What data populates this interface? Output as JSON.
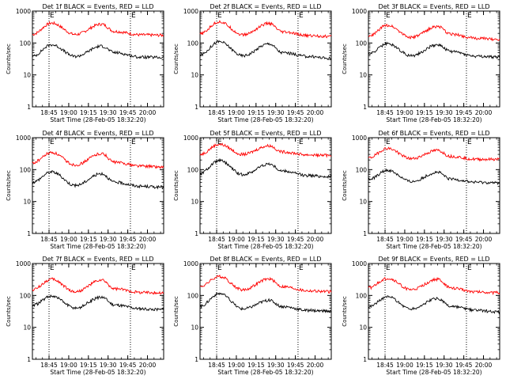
{
  "chart_data": [
    {
      "type": "line",
      "title": "Det 1f BLACK = Events, RED = LLD",
      "xlabel": "Start Time (28-Feb-05 18:32:20)",
      "ylabel": "Counts/sec",
      "yscale": "log",
      "ylim": [
        1,
        1000
      ],
      "xlim_minutes_after_start": [
        0,
        100
      ],
      "ytick_labels": [
        "1",
        "10",
        "100",
        "1000"
      ],
      "xtick_labels": [
        "18:45",
        "19:00",
        "19:15",
        "19:30",
        "19:45",
        "20:00"
      ],
      "markers": [
        {
          "label": "E",
          "x_label": "18:45"
        },
        {
          "label": "E",
          "x_label": "19:47"
        }
      ],
      "series": [
        {
          "color": "#ff0000",
          "x_times": [
            "18:32",
            "18:47",
            "19:05",
            "19:25",
            "19:35",
            "19:55",
            "20:12"
          ],
          "y": [
            185,
            420,
            185,
            390,
            230,
            180,
            175
          ]
        },
        {
          "color": "#000000",
          "x_times": [
            "18:32",
            "18:47",
            "19:05",
            "19:25",
            "19:35",
            "19:55",
            "20:12"
          ],
          "y": [
            38,
            88,
            38,
            80,
            50,
            36,
            35
          ]
        }
      ]
    },
    {
      "type": "line",
      "title": "Det 2f BLACK = Events, RED = LLD",
      "xlabel": "Start Time (28-Feb-05 18:32:20)",
      "ylabel": "Counts/sec",
      "yscale": "log",
      "ylim": [
        1,
        1000
      ],
      "xlim_minutes_after_start": [
        0,
        100
      ],
      "ytick_labels": [
        "1",
        "10",
        "100",
        "1000"
      ],
      "xtick_labels": [
        "18:45",
        "19:00",
        "19:15",
        "19:30",
        "19:45",
        "20:00"
      ],
      "markers": [
        {
          "label": "E",
          "x_label": "18:45"
        },
        {
          "label": "E",
          "x_label": "19:47"
        }
      ],
      "series": [
        {
          "color": "#ff0000",
          "x_times": [
            "18:32",
            "18:47",
            "19:05",
            "19:25",
            "19:35",
            "19:55",
            "20:12"
          ],
          "y": [
            190,
            460,
            180,
            410,
            220,
            170,
            160
          ]
        },
        {
          "color": "#000000",
          "x_times": [
            "18:32",
            "18:47",
            "19:05",
            "19:25",
            "19:35",
            "19:55",
            "20:12"
          ],
          "y": [
            42,
            110,
            40,
            95,
            50,
            38,
            33
          ]
        }
      ]
    },
    {
      "type": "line",
      "title": "Det 3f BLACK = Events, RED = LLD",
      "xlabel": "Start Time (28-Feb-05 18:32:20)",
      "ylabel": "Counts/sec",
      "yscale": "log",
      "ylim": [
        1,
        1000
      ],
      "xlim_minutes_after_start": [
        0,
        100
      ],
      "ytick_labels": [
        "1",
        "10",
        "100",
        "1000"
      ],
      "xtick_labels": [
        "18:45",
        "19:00",
        "19:15",
        "19:30",
        "19:45",
        "20:00"
      ],
      "markers": [
        {
          "label": "E",
          "x_label": "18:45"
        },
        {
          "label": "E",
          "x_label": "19:47"
        }
      ],
      "series": [
        {
          "color": "#ff0000",
          "x_times": [
            "18:32",
            "18:47",
            "19:05",
            "19:25",
            "19:35",
            "19:55",
            "20:12"
          ],
          "y": [
            160,
            360,
            150,
            330,
            190,
            140,
            130
          ]
        },
        {
          "color": "#000000",
          "x_times": [
            "18:32",
            "18:47",
            "19:05",
            "19:25",
            "19:35",
            "19:55",
            "20:12"
          ],
          "y": [
            45,
            95,
            40,
            88,
            55,
            38,
            36
          ]
        }
      ]
    },
    {
      "type": "line",
      "title": "Det 4f BLACK = Events, RED = LLD",
      "xlabel": "Start Time (28-Feb-05 18:32:20)",
      "ylabel": "Counts/sec",
      "yscale": "log",
      "ylim": [
        1,
        1000
      ],
      "xlim_minutes_after_start": [
        0,
        100
      ],
      "ytick_labels": [
        "1",
        "10",
        "100",
        "1000"
      ],
      "xtick_labels": [
        "18:45",
        "19:00",
        "19:15",
        "19:30",
        "19:45",
        "20:00"
      ],
      "markers": [
        {
          "label": "E",
          "x_label": "18:45"
        },
        {
          "label": "E",
          "x_label": "19:47"
        }
      ],
      "series": [
        {
          "color": "#ff0000",
          "x_times": [
            "18:32",
            "18:47",
            "19:05",
            "19:25",
            "19:35",
            "19:55",
            "20:12"
          ],
          "y": [
            160,
            340,
            140,
            320,
            170,
            130,
            120
          ]
        },
        {
          "color": "#000000",
          "x_times": [
            "18:32",
            "18:47",
            "19:05",
            "19:25",
            "19:35",
            "19:55",
            "20:12"
          ],
          "y": [
            40,
            85,
            32,
            75,
            40,
            30,
            28
          ]
        }
      ]
    },
    {
      "type": "line",
      "title": "Det 5f BLACK = Events, RED = LLD",
      "xlabel": "Start Time (28-Feb-05 18:32:20)",
      "ylabel": "Counts/sec",
      "yscale": "log",
      "ylim": [
        1,
        1000
      ],
      "xlim_minutes_after_start": [
        0,
        100
      ],
      "ytick_labels": [
        "1",
        "10",
        "100",
        "1000"
      ],
      "xtick_labels": [
        "18:45",
        "19:00",
        "19:15",
        "19:30",
        "19:45",
        "20:00"
      ],
      "markers": [
        {
          "label": "E",
          "x_label": "18:45"
        },
        {
          "label": "E",
          "x_label": "19:47"
        }
      ],
      "series": [
        {
          "color": "#ff0000",
          "x_times": [
            "18:32",
            "18:47",
            "19:05",
            "19:25",
            "19:35",
            "19:55",
            "20:12"
          ],
          "y": [
            300,
            620,
            300,
            560,
            360,
            290,
            280
          ]
        },
        {
          "color": "#000000",
          "x_times": [
            "18:32",
            "18:47",
            "19:05",
            "19:25",
            "19:35",
            "19:55",
            "20:12"
          ],
          "y": [
            75,
            190,
            70,
            150,
            90,
            65,
            60
          ]
        }
      ]
    },
    {
      "type": "line",
      "title": "Det 6f BLACK = Events, RED = LLD",
      "xlabel": "Start Time (28-Feb-05 18:32:20)",
      "ylabel": "Counts/sec",
      "yscale": "log",
      "ylim": [
        1,
        1000
      ],
      "xlim_minutes_after_start": [
        0,
        100
      ],
      "ytick_labels": [
        "1",
        "10",
        "100",
        "1000"
      ],
      "xtick_labels": [
        "18:45",
        "19:00",
        "19:15",
        "19:30",
        "19:45",
        "20:00"
      ],
      "markers": [
        {
          "label": "E",
          "x_label": "18:45"
        },
        {
          "label": "E",
          "x_label": "19:47"
        }
      ],
      "series": [
        {
          "color": "#ff0000",
          "x_times": [
            "18:32",
            "18:47",
            "19:05",
            "19:25",
            "19:35",
            "19:55",
            "20:12"
          ],
          "y": [
            230,
            460,
            220,
            400,
            260,
            210,
            210
          ]
        },
        {
          "color": "#000000",
          "x_times": [
            "18:32",
            "18:47",
            "19:05",
            "19:25",
            "19:35",
            "19:55",
            "20:12"
          ],
          "y": [
            48,
            95,
            42,
            82,
            50,
            40,
            38
          ]
        }
      ]
    },
    {
      "type": "line",
      "title": "Det 7f BLACK = Events, RED = LLD",
      "xlabel": "Start Time (28-Feb-05 18:32:20)",
      "ylabel": "Counts/sec",
      "yscale": "log",
      "ylim": [
        1,
        1000
      ],
      "xlim_minutes_after_start": [
        0,
        100
      ],
      "ytick_labels": [
        "1",
        "10",
        "100",
        "1000"
      ],
      "xtick_labels": [
        "18:45",
        "19:00",
        "19:15",
        "19:30",
        "19:45",
        "20:00"
      ],
      "markers": [
        {
          "label": "E",
          "x_label": "18:45"
        },
        {
          "label": "E",
          "x_label": "19:47"
        }
      ],
      "series": [
        {
          "color": "#ff0000",
          "x_times": [
            "18:32",
            "18:47",
            "19:05",
            "19:25",
            "19:35",
            "19:55",
            "20:12"
          ],
          "y": [
            150,
            320,
            130,
            300,
            160,
            125,
            120
          ]
        },
        {
          "color": "#000000",
          "x_times": [
            "18:32",
            "18:47",
            "19:05",
            "19:25",
            "19:35",
            "19:55",
            "20:12"
          ],
          "y": [
            48,
            95,
            40,
            88,
            50,
            38,
            36
          ]
        }
      ]
    },
    {
      "type": "line",
      "title": "Det 8f BLACK = Events, RED = LLD",
      "xlabel": "Start Time (28-Feb-05 18:32:20)",
      "ylabel": "Counts/sec",
      "yscale": "log",
      "ylim": [
        1,
        1000
      ],
      "xlim_minutes_after_start": [
        0,
        100
      ],
      "ytick_labels": [
        "1",
        "10",
        "100",
        "1000"
      ],
      "xtick_labels": [
        "18:45",
        "19:00",
        "19:15",
        "19:30",
        "19:45",
        "20:00"
      ],
      "markers": [
        {
          "label": "E",
          "x_label": "18:45"
        },
        {
          "label": "E",
          "x_label": "19:47"
        }
      ],
      "series": [
        {
          "color": "#ff0000",
          "x_times": [
            "18:32",
            "18:47",
            "19:05",
            "19:25",
            "19:35",
            "19:55",
            "20:12"
          ],
          "y": [
            190,
            390,
            150,
            330,
            190,
            140,
            130
          ]
        },
        {
          "color": "#000000",
          "x_times": [
            "18:32",
            "18:47",
            "19:05",
            "19:25",
            "19:35",
            "19:55",
            "20:12"
          ],
          "y": [
            45,
            115,
            38,
            70,
            45,
            34,
            32
          ]
        }
      ]
    },
    {
      "type": "line",
      "title": "Det 9f BLACK = Events, RED = LLD",
      "xlabel": "Start Time (28-Feb-05 18:32:20)",
      "ylabel": "Counts/sec",
      "yscale": "log",
      "ylim": [
        1,
        1000
      ],
      "xlim_minutes_after_start": [
        0,
        100
      ],
      "ytick_labels": [
        "1",
        "10",
        "100",
        "1000"
      ],
      "xtick_labels": [
        "18:45",
        "19:00",
        "19:15",
        "19:30",
        "19:45",
        "20:00"
      ],
      "markers": [
        {
          "label": "E",
          "x_label": "18:45"
        },
        {
          "label": "E",
          "x_label": "19:47"
        }
      ],
      "series": [
        {
          "color": "#ff0000",
          "x_times": [
            "18:32",
            "18:47",
            "19:05",
            "19:25",
            "19:35",
            "19:55",
            "20:12"
          ],
          "y": [
            170,
            340,
            150,
            320,
            170,
            130,
            120
          ]
        },
        {
          "color": "#000000",
          "x_times": [
            "18:32",
            "18:47",
            "19:05",
            "19:25",
            "19:35",
            "19:55",
            "20:12"
          ],
          "y": [
            45,
            90,
            38,
            80,
            45,
            34,
            30
          ]
        }
      ]
    }
  ]
}
